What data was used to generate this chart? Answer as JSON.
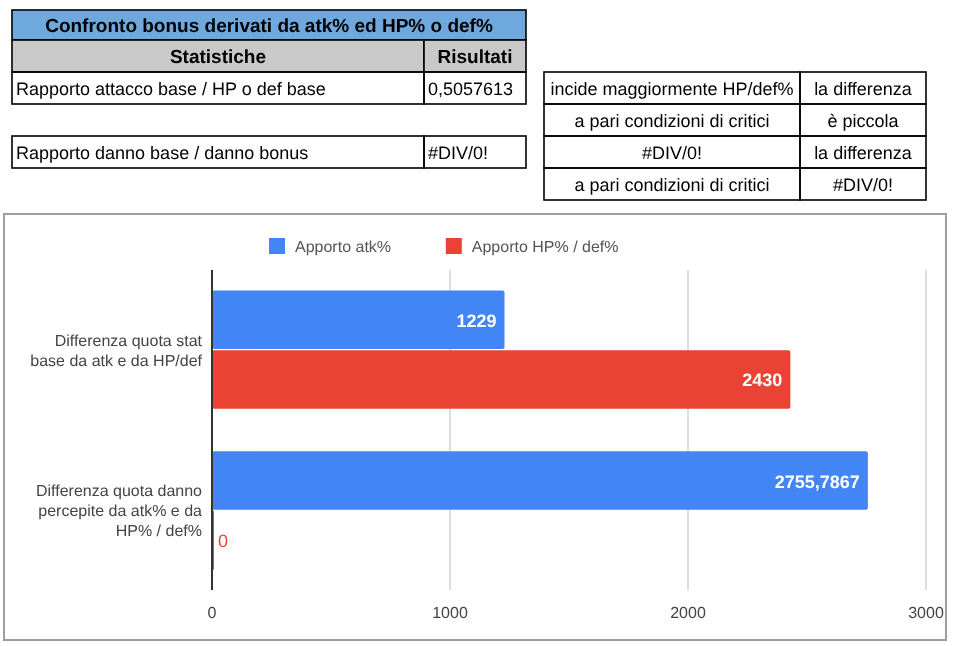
{
  "chart_data": {
    "type": "bar",
    "orientation": "horizontal",
    "title": "Confronto bonus derivati da atk% ed HP% o def%",
    "annotations": [
      "Statistiche",
      "Risultati",
      "Rapporto attacco base / HP o def base",
      "0,5057613",
      "incide maggiormente HP/def%",
      "la differenza",
      "a pari condizioni di critici",
      "è piccola",
      "Rapporto danno base / danno bonus",
      "#DIV/0!",
      "#DIV/0!",
      "la differenza",
      "a pari condizioni di critici",
      "#DIV/0!"
    ],
    "categories": [
      "Differenza quota stat base da atk e da HP/def",
      "Differenza quota danno percepite da atk% e da HP% / def%"
    ],
    "series": [
      {
        "name": "Apporto atk%",
        "color": "#4285f4",
        "values": [
          1229,
          2755.7867
        ],
        "value_labels": [
          "1229",
          "2755,7867"
        ]
      },
      {
        "name": "Apporto HP% / def%",
        "color": "#ea4335",
        "values": [
          2430,
          0
        ],
        "value_labels": [
          "2430",
          "0"
        ]
      }
    ],
    "xlim": [
      0,
      3000
    ],
    "xticks": [
      0,
      1000,
      2000,
      3000
    ],
    "grid": "x",
    "legend": "top"
  }
}
